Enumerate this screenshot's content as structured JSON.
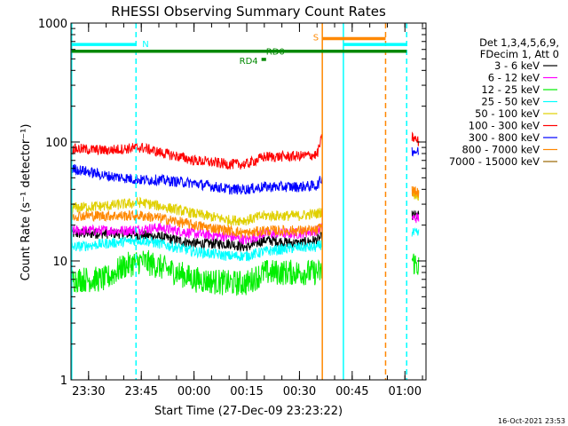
{
  "chart_data": {
    "type": "line",
    "title": "RHESSI Observing Summary Count Rates",
    "xlabel": "Start Time (27-Dec-09 23:23:22)",
    "ylabel": "Count Rate (s⁻¹ detector⁻¹)",
    "y_scale": "log",
    "ylim": [
      1,
      1000
    ],
    "y_ticks": [
      1,
      10,
      100,
      1000
    ],
    "y_tick_labels": [
      "1",
      "10",
      "100",
      "1000"
    ],
    "x_range_minutes_from_2320": [
      5,
      106
    ],
    "x_ticks": [
      {
        "m": 10,
        "label": "23:30"
      },
      {
        "m": 25,
        "label": "23:45"
      },
      {
        "m": 40,
        "label": "00:00"
      },
      {
        "m": 55,
        "label": "00:15"
      },
      {
        "m": 70,
        "label": "00:30"
      },
      {
        "m": 85,
        "label": "00:45"
      },
      {
        "m": 100,
        "label": "01:00"
      }
    ],
    "legend_header": [
      "Det 1,3,4,5,6,9,",
      "FDecim 1, Att 0"
    ],
    "legend_position": "right",
    "gaps_minutes": [
      [
        76.5,
        102
      ]
    ],
    "series": [
      {
        "name": "3 - 6 keV",
        "color": "#000000",
        "points": [
          [
            5,
            17
          ],
          [
            20,
            17
          ],
          [
            30,
            16
          ],
          [
            40,
            14
          ],
          [
            50,
            14
          ],
          [
            55,
            13
          ],
          [
            60,
            15
          ],
          [
            70,
            14
          ],
          [
            75,
            15
          ],
          [
            76.5,
            16
          ],
          [
            102,
            24
          ],
          [
            104,
            24
          ]
        ]
      },
      {
        "name": "6 - 12 keV",
        "color": "#ff00ff",
        "points": [
          [
            5,
            18
          ],
          [
            20,
            18
          ],
          [
            30,
            19
          ],
          [
            40,
            17
          ],
          [
            50,
            16
          ],
          [
            55,
            15
          ],
          [
            60,
            17
          ],
          [
            70,
            17
          ],
          [
            75,
            18
          ],
          [
            76.5,
            19
          ],
          [
            102,
            23
          ],
          [
            104,
            23
          ]
        ]
      },
      {
        "name": "12 - 25 keV",
        "color": "#00ee00",
        "points": [
          [
            5,
            7
          ],
          [
            15,
            7
          ],
          [
            20,
            9
          ],
          [
            25,
            10
          ],
          [
            30,
            9
          ],
          [
            40,
            7
          ],
          [
            50,
            6.5
          ],
          [
            55,
            6.5
          ],
          [
            60,
            8
          ],
          [
            70,
            8
          ],
          [
            75,
            8
          ],
          [
            76.5,
            8
          ],
          [
            102,
            10
          ],
          [
            104,
            9
          ]
        ]
      },
      {
        "name": "25 - 50 keV",
        "color": "#00ffff",
        "points": [
          [
            5,
            13
          ],
          [
            15,
            14
          ],
          [
            25,
            15
          ],
          [
            30,
            14
          ],
          [
            40,
            12
          ],
          [
            50,
            11
          ],
          [
            55,
            11
          ],
          [
            60,
            12
          ],
          [
            70,
            13
          ],
          [
            75,
            13
          ],
          [
            76.5,
            14
          ],
          [
            102,
            17
          ],
          [
            104,
            17
          ]
        ]
      },
      {
        "name": "50 - 100 keV",
        "color": "#e0d000",
        "points": [
          [
            5,
            28
          ],
          [
            15,
            29
          ],
          [
            25,
            31
          ],
          [
            30,
            29
          ],
          [
            40,
            25
          ],
          [
            50,
            22
          ],
          [
            55,
            22
          ],
          [
            60,
            24
          ],
          [
            70,
            24
          ],
          [
            75,
            25
          ],
          [
            76.5,
            26
          ],
          [
            102,
            37
          ],
          [
            104,
            35
          ]
        ]
      },
      {
        "name": "100 - 300 keV",
        "color": "#ff0000",
        "points": [
          [
            5,
            88
          ],
          [
            15,
            85
          ],
          [
            25,
            90
          ],
          [
            30,
            82
          ],
          [
            40,
            70
          ],
          [
            50,
            65
          ],
          [
            55,
            65
          ],
          [
            60,
            75
          ],
          [
            70,
            76
          ],
          [
            75,
            78
          ],
          [
            76.5,
            110
          ],
          [
            102,
            110
          ],
          [
            104,
            100
          ]
        ]
      },
      {
        "name": "300 - 800 keV",
        "color": "#0000ff",
        "points": [
          [
            5,
            60
          ],
          [
            15,
            52
          ],
          [
            25,
            48
          ],
          [
            30,
            48
          ],
          [
            40,
            45
          ],
          [
            50,
            40
          ],
          [
            55,
            40
          ],
          [
            60,
            42
          ],
          [
            70,
            42
          ],
          [
            75,
            43
          ],
          [
            76.5,
            50
          ],
          [
            102,
            85
          ],
          [
            104,
            82
          ]
        ]
      },
      {
        "name": "800 - 7000 keV",
        "color": "#ff8800",
        "points": [
          [
            5,
            24
          ],
          [
            15,
            24
          ],
          [
            25,
            24
          ],
          [
            30,
            23
          ],
          [
            40,
            20
          ],
          [
            50,
            18
          ],
          [
            55,
            17
          ],
          [
            60,
            18
          ],
          [
            70,
            18
          ],
          [
            75,
            18
          ],
          [
            76.5,
            20
          ],
          [
            102,
            39
          ],
          [
            104,
            37
          ]
        ]
      },
      {
        "name": "7000 - 15000 keV",
        "color": "#996600",
        "points": []
      }
    ],
    "vertical_markers": [
      {
        "m": 5.2,
        "color": "#00ffff",
        "style": "solid"
      },
      {
        "m": 23.5,
        "color": "#00ffff",
        "style": "dashed"
      },
      {
        "m": 76.5,
        "color": "#ff8800",
        "style": "solid"
      },
      {
        "m": 82.5,
        "color": "#00ffff",
        "style": "solid"
      },
      {
        "m": 94.5,
        "color": "#ff8800",
        "style": "dashed"
      },
      {
        "m": 100.5,
        "color": "#00ffff",
        "style": "dashed"
      }
    ],
    "flag_bars": [
      {
        "label": "N",
        "color": "#00ffff",
        "x0": 5.2,
        "x1": 23.5,
        "y": 660
      },
      {
        "label": "",
        "color": "#00ffff",
        "x0": 82.5,
        "x1": 100.5,
        "y": 660
      },
      {
        "label": "S",
        "color": "#ff8800",
        "x0": 76.5,
        "x1": 94.5,
        "y": 740
      },
      {
        "label": "RD0",
        "color": "#008800",
        "x0": 5.2,
        "x1": 100.5,
        "y": 580
      },
      {
        "label": "RD4",
        "color": "#008800",
        "x0": 59.2,
        "x1": 60.5,
        "y": 495
      }
    ],
    "footer_timestamp": "16-Oct-2021 23:53"
  }
}
